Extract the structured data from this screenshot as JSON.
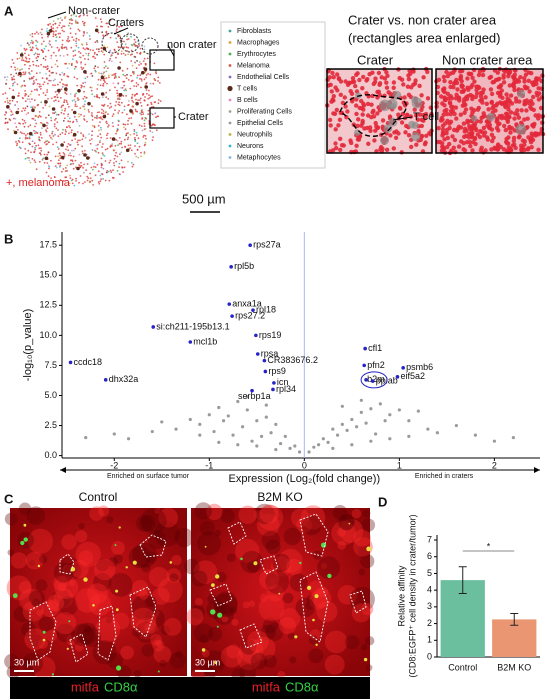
{
  "panel_labels": [
    "A",
    "B",
    "C",
    "D"
  ],
  "panel_a": {
    "annotations": [
      "Non-crater",
      "Craters",
      "non crater",
      "Crater"
    ],
    "legend": [
      {
        "label": "Fibroblasts",
        "color": "#3aa6a0"
      },
      {
        "label": "Macrophages",
        "color": "#e0a030"
      },
      {
        "label": "Erythrocytes",
        "color": "#4cae4c"
      },
      {
        "label": "Melanoma",
        "color": "#d9534f"
      },
      {
        "label": "Endothelial Cells",
        "color": "#8e6bbf"
      },
      {
        "label": "T cells",
        "color": "#5a2a1a"
      },
      {
        "label": "B cells",
        "color": "#e38bbf"
      },
      {
        "label": "Proliferating Cells",
        "color": "#9aa88a"
      },
      {
        "label": "Epithelial Cells",
        "color": "#9a9a9a"
      },
      {
        "label": "Neutrophils",
        "color": "#b8b040"
      },
      {
        "label": "Neurons",
        "color": "#30b8d0"
      },
      {
        "label": "Metaphocytes",
        "color": "#8ab4e8"
      }
    ],
    "melanoma_note": "+, melanoma",
    "scale_bar": "500 µm",
    "inset_title": [
      "Crater vs. non crater area",
      "(rectangles area enlarged)"
    ],
    "insets": [
      "Crater",
      "Non crater area"
    ],
    "inset_annotation": "T cell"
  },
  "panel_c": {
    "titles": [
      "Control",
      "B2M KO"
    ],
    "scale_bars": [
      "30 µm",
      "30 µm"
    ],
    "channels": [
      {
        "label": "mitfa",
        "color": "#e8202a"
      },
      {
        "label": "CD8α",
        "color": "#34d043"
      }
    ]
  },
  "chart_data": [
    {
      "type": "scatter",
      "ylabel": "-log₁₀(p_value)",
      "xlabel": "Expression (Log₂(fold change))",
      "annotations": [
        "Enriched on surface tumor",
        "Enriched in craters"
      ],
      "xlim": [
        -2.55,
        2.48
      ],
      "xticks": [
        -2,
        -1,
        0,
        1,
        2
      ],
      "ylim": [
        -0.2,
        18.6
      ],
      "yticks": [
        {
          "value": 0,
          "label": "0.0"
        },
        {
          "value": 2.5,
          "label": "2.5"
        },
        {
          "value": 5,
          "label": "5.0"
        },
        {
          "value": 7.5,
          "label": "7.5"
        },
        {
          "value": 10,
          "label": "10.0"
        },
        {
          "value": 12.5,
          "label": "12.5"
        },
        {
          "value": 15,
          "label": "15.0"
        },
        {
          "value": 17.5,
          "label": "17.5"
        }
      ],
      "points": {
        "color": "#2424c8",
        "labels": [
          "rps27a",
          "rpl5b",
          "anxa1a",
          "rpl18",
          "rps27.2",
          "si:ch211-195b13.1",
          "rps19",
          "mcl1b",
          "rpsa",
          "CR383676.2",
          "ccdc18",
          "rps9",
          "dhx32a",
          "icn",
          "rpl34",
          "serbp1a",
          "cfl1",
          "pfn2",
          "psmb6",
          "b2m",
          "ppiab",
          "eif5a2"
        ],
        "x": [
          -0.57,
          -0.77,
          -0.79,
          -0.54,
          -0.76,
          -1.59,
          -0.51,
          -1.2,
          -0.49,
          -0.42,
          -2.46,
          -0.41,
          -2.09,
          -0.32,
          -0.33,
          -0.55,
          0.64,
          0.63,
          1.04,
          0.65,
          0.72,
          0.98
        ],
        "values": [
          17.5,
          15.7,
          12.6,
          12.1,
          11.6,
          10.7,
          10.0,
          9.45,
          8.45,
          7.9,
          7.75,
          7.0,
          6.3,
          6.05,
          5.5,
          5.4,
          8.9,
          7.5,
          7.3,
          6.3,
          6.2,
          6.55
        ]
      },
      "background_points": {
        "color": "#9a9a9a",
        "x": [
          -2.3,
          -2.0,
          -1.85,
          -1.6,
          -1.5,
          -1.35,
          -1.2,
          -1.1,
          -1.0,
          -0.95,
          -0.9,
          -0.85,
          -0.8,
          -0.75,
          -0.7,
          -0.65,
          -0.6,
          -0.55,
          -0.5,
          -0.45,
          -0.4,
          -0.35,
          -0.3,
          -0.25,
          -0.2,
          -0.15,
          -0.1,
          -0.05,
          0.05,
          0.1,
          0.15,
          0.2,
          0.25,
          0.3,
          0.35,
          0.4,
          0.45,
          0.5,
          0.55,
          0.6,
          0.65,
          0.7,
          0.75,
          0.8,
          0.85,
          0.9,
          1.0,
          1.1,
          1.2,
          1.3,
          1.4,
          1.6,
          1.8,
          2.0,
          2.2,
          -0.7,
          -0.5,
          -0.3,
          0.3,
          0.5,
          0.7,
          -0.9,
          0.9,
          -1.1,
          1.1,
          -0.6,
          0.6,
          -0.4,
          0.4
        ],
        "values": [
          1.5,
          1.8,
          1.4,
          2.0,
          2.8,
          2.2,
          3.0,
          2.6,
          3.4,
          2.0,
          4.0,
          2.9,
          3.3,
          1.7,
          4.5,
          2.4,
          3.8,
          1.2,
          2.9,
          1.6,
          3.2,
          1.9,
          2.6,
          1.0,
          1.6,
          0.6,
          0.8,
          0.3,
          0.3,
          0.7,
          0.9,
          1.4,
          1.1,
          2.2,
          1.7,
          2.6,
          2.1,
          3.0,
          2.4,
          3.6,
          2.7,
          3.9,
          1.8,
          4.3,
          2.9,
          3.4,
          3.8,
          2.9,
          3.7,
          2.2,
          1.9,
          2.5,
          1.7,
          1.2,
          1.5,
          0.9,
          0.8,
          0.5,
          0.6,
          0.9,
          1.2,
          1.1,
          1.4,
          1.7,
          1.6,
          4.9,
          4.6,
          4.2,
          4.1
        ]
      }
    },
    {
      "type": "bar",
      "ylabel": [
        "Relative affinity",
        "(CD8:EGFP⁺ cell density in crater/tumor)"
      ],
      "categories": [
        "Control",
        "B2M KO"
      ],
      "values": [
        4.6,
        2.25
      ],
      "errors": [
        0.8,
        0.35
      ],
      "colors": [
        "#6cbf9e",
        "#ea9672"
      ],
      "ylim": [
        0,
        7.3
      ],
      "yticks": [
        0,
        1,
        2,
        3,
        4,
        5,
        6,
        7
      ],
      "significance": "*"
    }
  ]
}
